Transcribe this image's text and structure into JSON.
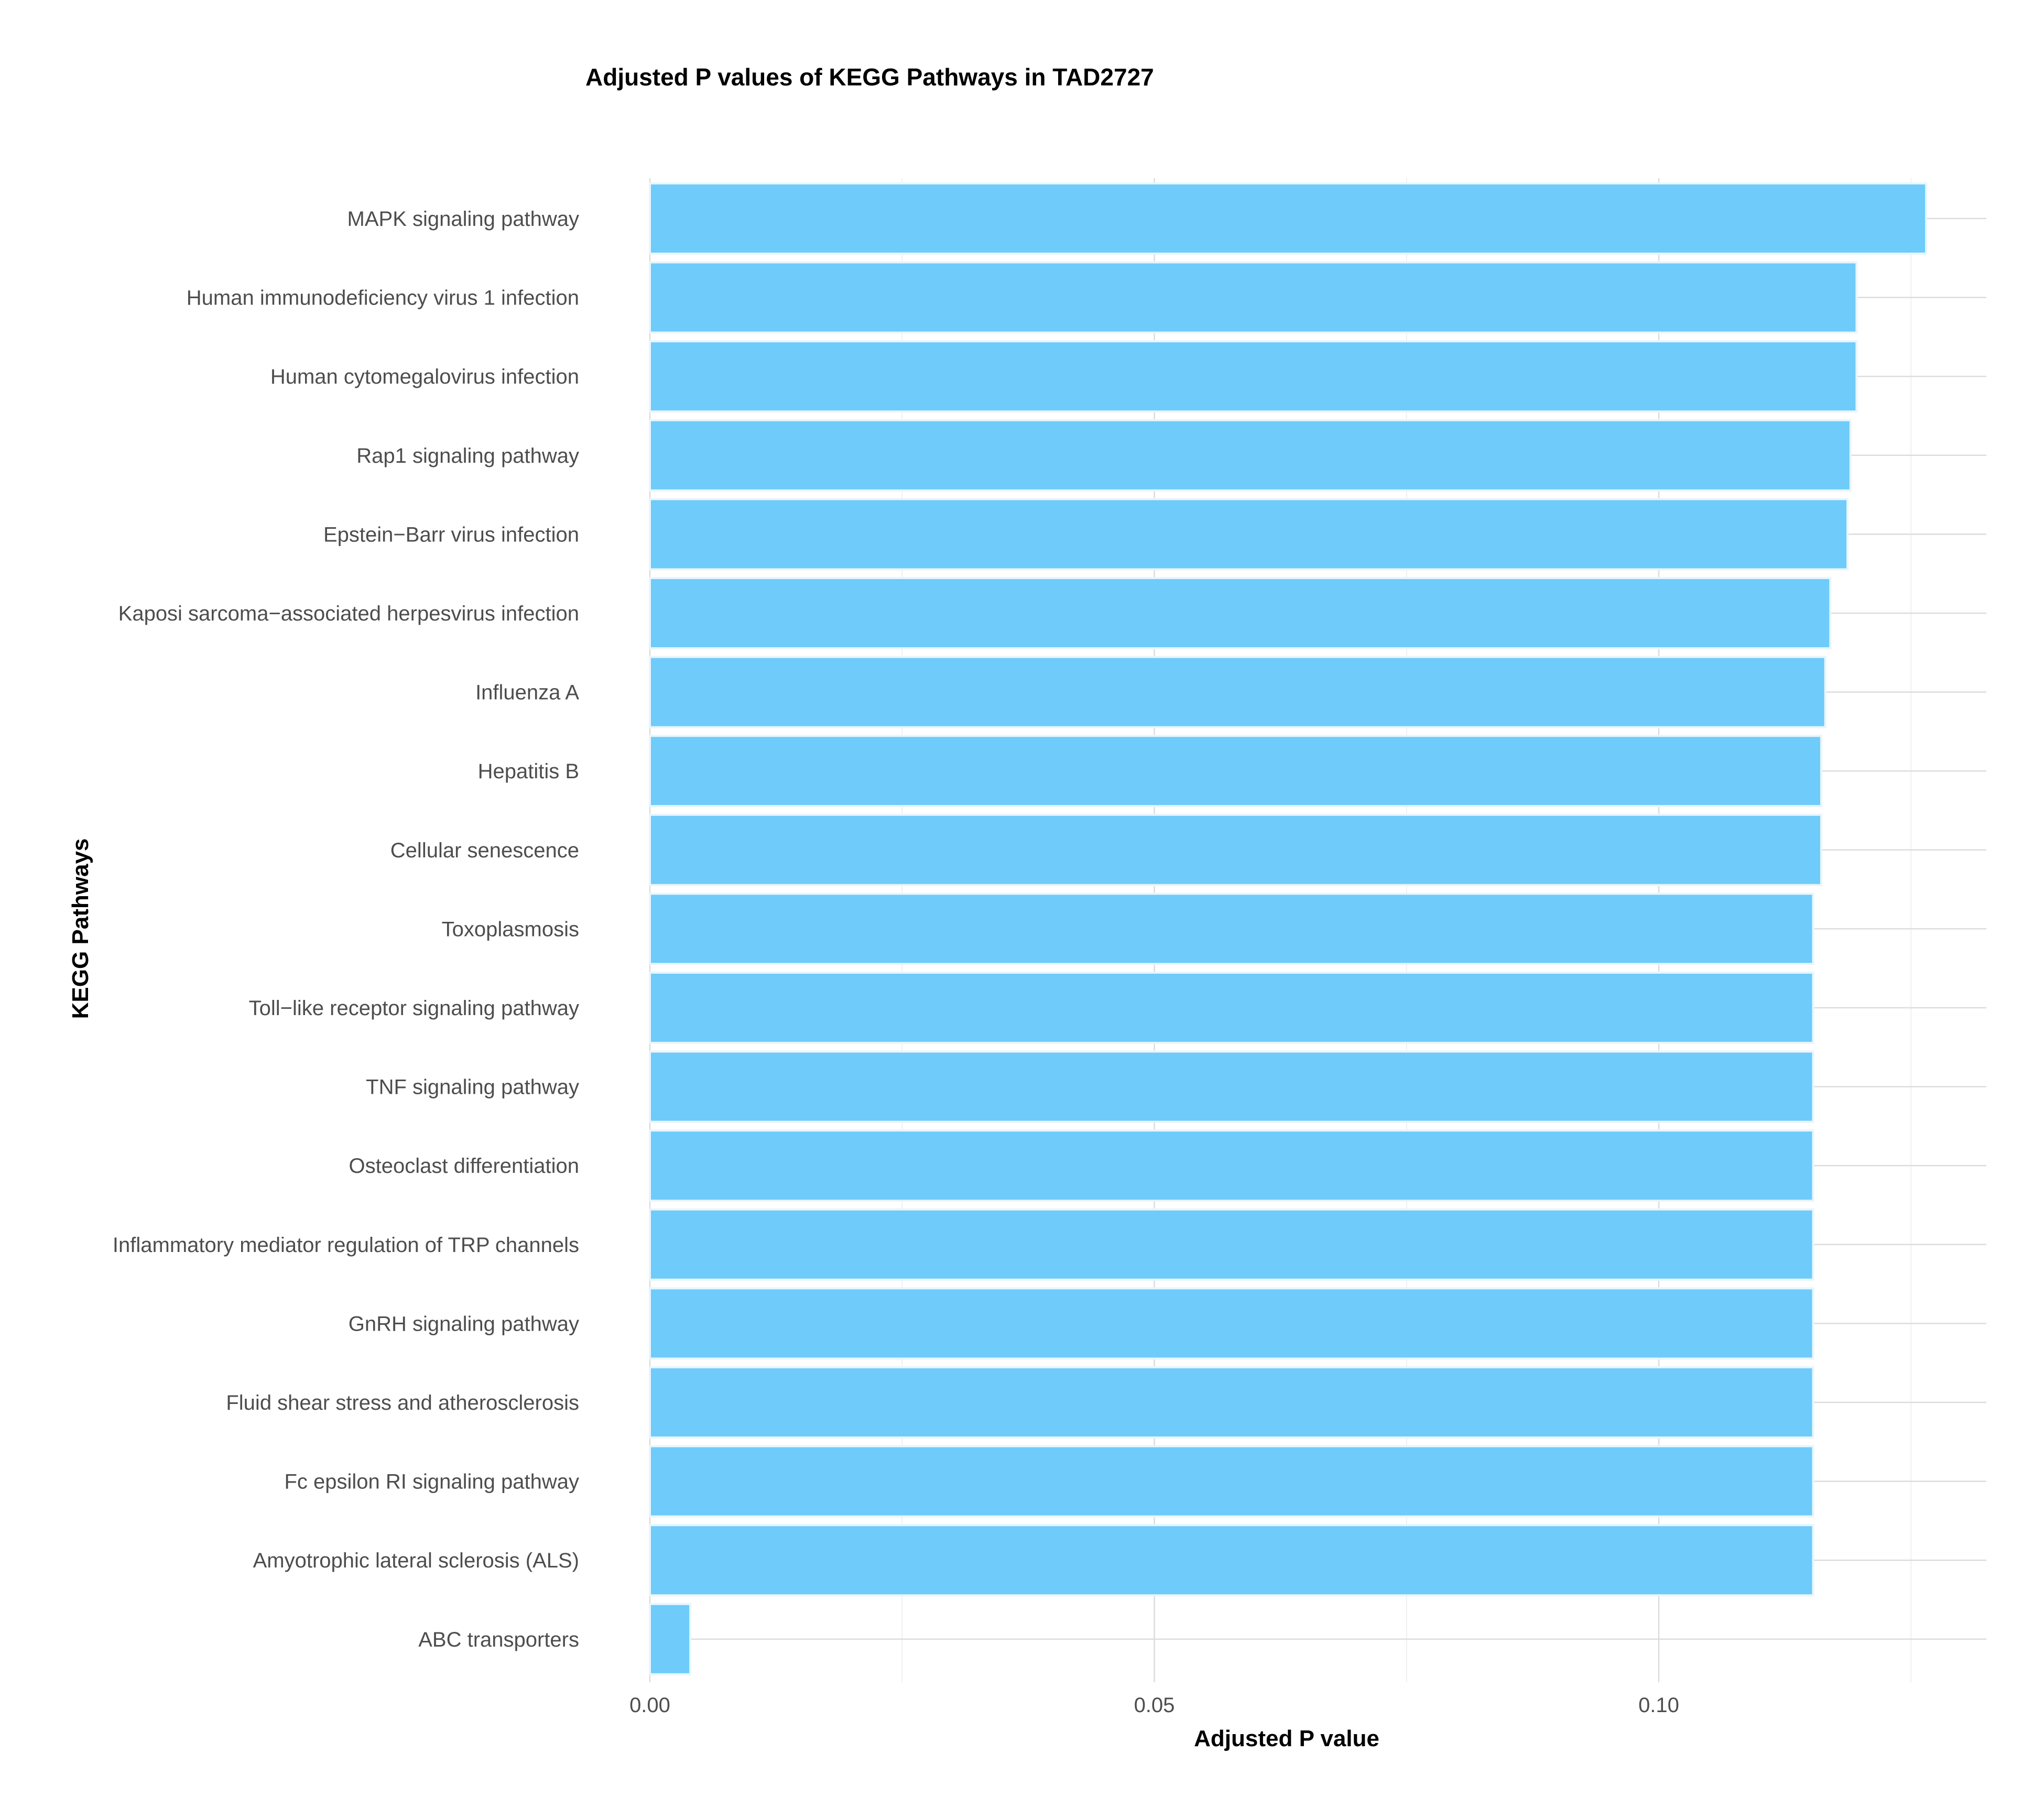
{
  "chart_data": {
    "type": "bar",
    "orientation": "horizontal",
    "title": "Adjusted P values of KEGG Pathways in TAD2727",
    "xlabel": "Adjusted P value",
    "ylabel": "KEGG Pathways",
    "xlim": [
      0,
      0.133
    ],
    "xticks": [
      0.0,
      0.05,
      0.1
    ],
    "xtick_labels": [
      "0.00",
      "0.05",
      "0.10"
    ],
    "grid": true,
    "bar_color": "#6ecbfa",
    "categories": [
      "MAPK signaling pathway",
      "Human immunodeficiency virus 1 infection",
      "Human cytomegalovirus infection",
      "Rap1 signaling pathway",
      "Epstein−Barr virus infection",
      "Kaposi sarcoma−associated herpesvirus infection",
      "Influenza A",
      "Hepatitis B",
      "Cellular senescence",
      "Toxoplasmosis",
      "Toll−like receptor signaling pathway",
      "TNF signaling pathway",
      "Osteoclast differentiation",
      "Inflammatory mediator regulation of TRP channels",
      "GnRH signaling pathway",
      "Fluid shear stress and atherosclerosis",
      "Fc epsilon RI signaling pathway",
      "Amyotrophic lateral sclerosis (ALS)",
      "ABC transporters"
    ],
    "values": [
      0.1265,
      0.1196,
      0.1196,
      0.119,
      0.1187,
      0.117,
      0.1165,
      0.1161,
      0.1161,
      0.1153,
      0.1153,
      0.1153,
      0.1153,
      0.1153,
      0.1153,
      0.1153,
      0.1153,
      0.1153,
      0.004
    ]
  }
}
